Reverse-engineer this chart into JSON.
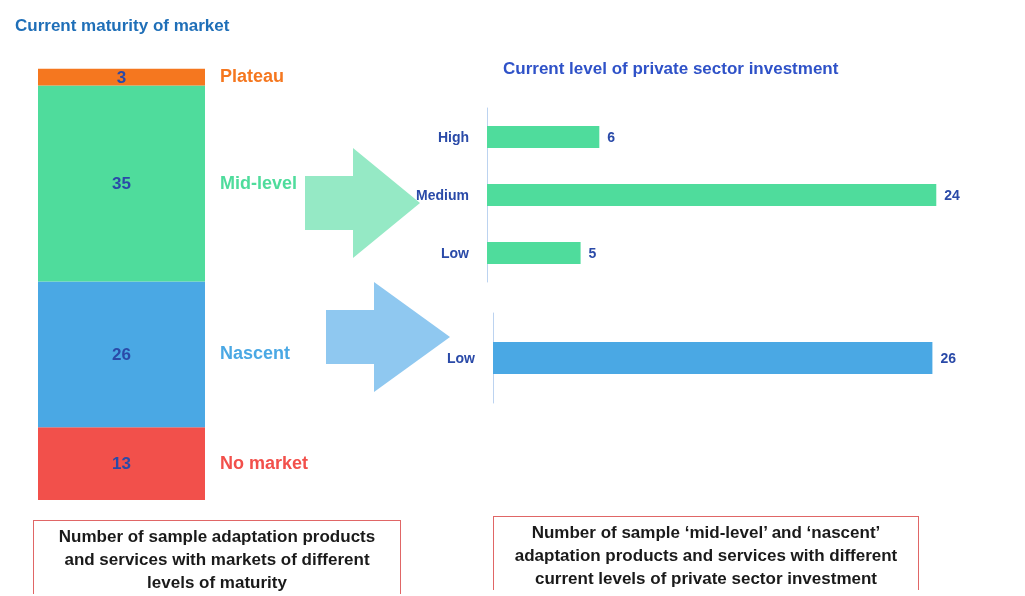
{
  "chart_data": [
    {
      "type": "bar",
      "title": "Current maturity of market",
      "stacked": true,
      "categories": [
        null
      ],
      "data_labels": true,
      "series": [
        {
          "name": "No market",
          "color": "#f2504b",
          "values": [
            13
          ]
        },
        {
          "name": "Nascent",
          "color": "#4aa8e4",
          "values": [
            26
          ]
        },
        {
          "name": "Mid-level",
          "color": "#4fdc9c",
          "values": [
            35
          ]
        },
        {
          "name": "Plateau",
          "color": "#f5771f",
          "values": [
            3
          ]
        }
      ],
      "annotations": [
        "Number of sample adaptation products and services with markets of different levels of maturity"
      ]
    },
    {
      "type": "bar",
      "title": "Current level of private sector investment",
      "orientation": "horizontal",
      "categories": [
        "High",
        "Medium",
        "Low"
      ],
      "values": [
        6,
        24,
        5
      ],
      "color": "#4fdc9c",
      "data_labels": true
    },
    {
      "type": "bar",
      "orientation": "horizontal",
      "categories": [
        "Low"
      ],
      "values": [
        26
      ],
      "color": "#4aa8e4",
      "data_labels": true,
      "annotations": [
        "Number of sample ‘mid-level’ and ‘nascent’ adaptation products and services with different current levels of private sector investment"
      ]
    }
  ]
}
